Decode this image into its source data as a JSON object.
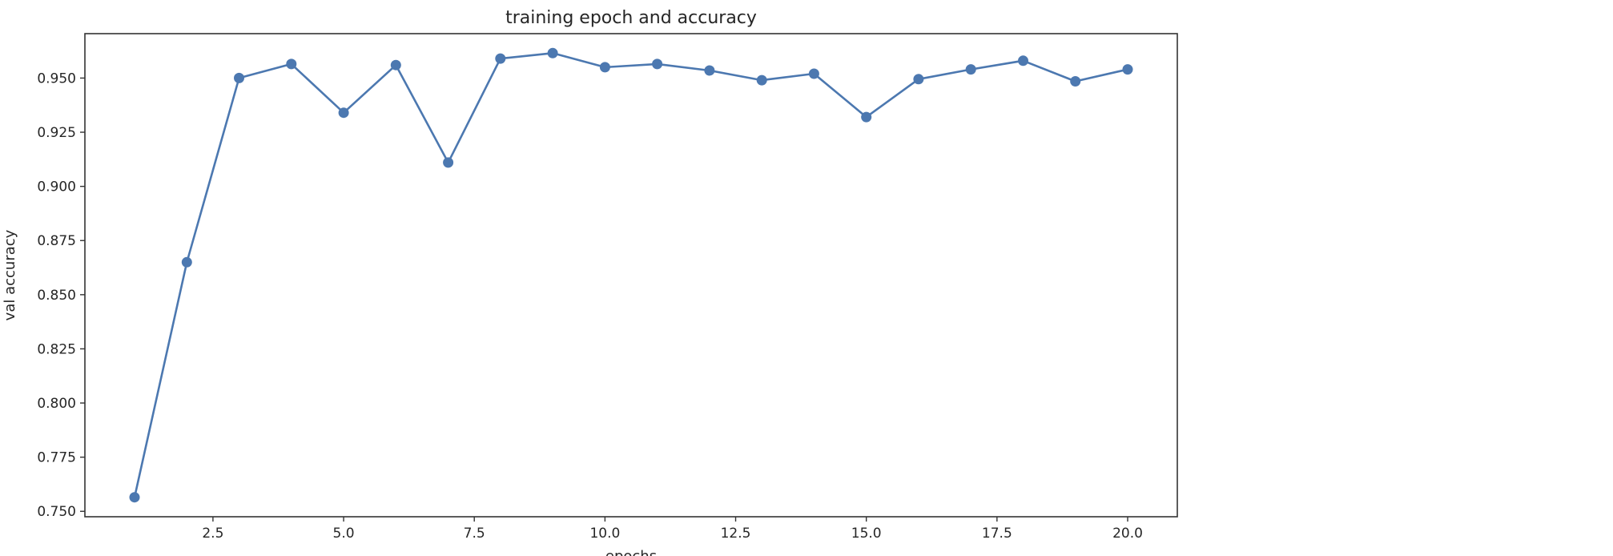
{
  "chart_data": {
    "type": "line",
    "title": "training epoch and accuracy",
    "xlabel": "epochs",
    "ylabel": "val accuracy",
    "x": [
      1,
      2,
      3,
      4,
      5,
      6,
      7,
      8,
      9,
      10,
      11,
      12,
      13,
      14,
      15,
      16,
      17,
      18,
      19,
      20
    ],
    "series": [
      {
        "values": [
          0.7565,
          0.865,
          0.95,
          0.9565,
          0.934,
          0.956,
          0.911,
          0.959,
          0.9615,
          0.955,
          0.9565,
          0.9535,
          0.949,
          0.952,
          0.932,
          0.9495,
          0.954,
          0.958,
          0.9485,
          0.954
        ],
        "color": "#4c78b0",
        "marker": "circle"
      }
    ],
    "xlim": [
      0.05,
      20.95
    ],
    "ylim": [
      0.7475,
      0.9705
    ],
    "xticks": [
      2.5,
      5.0,
      7.5,
      10.0,
      12.5,
      15.0,
      17.5,
      20.0
    ],
    "xtick_labels": [
      "2.5",
      "5.0",
      "7.5",
      "10.0",
      "12.5",
      "15.0",
      "17.5",
      "20.0"
    ],
    "yticks": [
      0.75,
      0.775,
      0.8,
      0.825,
      0.85,
      0.875,
      0.9,
      0.925,
      0.95
    ],
    "ytick_labels": [
      "0.750",
      "0.775",
      "0.800",
      "0.825",
      "0.850",
      "0.875",
      "0.900",
      "0.925",
      "0.950"
    ],
    "grid": false,
    "legend": "none"
  }
}
